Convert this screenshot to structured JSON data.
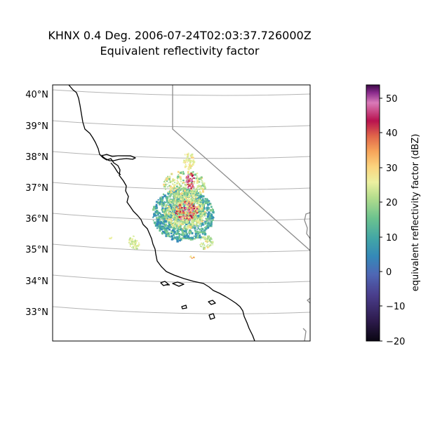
{
  "title": {
    "line1": "KHNX 0.4 Deg. 2006-07-24T02:03:37.726000Z",
    "line2": "Equivalent reflectivity factor"
  },
  "map": {
    "latitude_labels": [
      "40°N",
      "39°N",
      "38°N",
      "37°N",
      "36°N",
      "35°N",
      "34°N",
      "33°N"
    ],
    "gridlines": "on",
    "coastline_color": "#000000",
    "state_border_color": "#8c8c8c",
    "gridline_color": "#b4b4b4",
    "radar_site": "KHNX"
  },
  "colorbar": {
    "label": "equivalent reflectivity factor (dBZ)",
    "ticks": [
      "50",
      "40",
      "30",
      "20",
      "10",
      "0",
      "−10",
      "−20"
    ],
    "min": -20,
    "max": 54,
    "colormap": "Spectral_r style (black-purple-blue-teal-green-yellow-orange-red-magenta)"
  }
}
